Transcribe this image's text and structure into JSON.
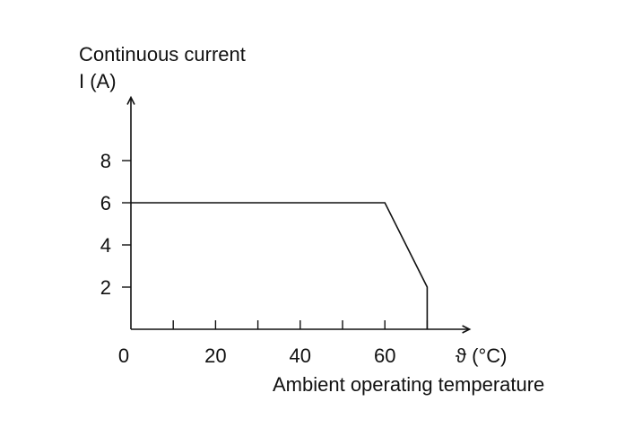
{
  "chart_data": {
    "type": "line",
    "title": "",
    "ylabel_line1": "Continuous current",
    "ylabel_line2": "I (A)",
    "xunit_label": "ϑ (°C)",
    "xlabel": "Ambient operating temperature",
    "xlim": [
      0,
      80
    ],
    "ylim": [
      0,
      11
    ],
    "x_tick_positions": [
      0,
      10,
      20,
      30,
      40,
      50,
      60,
      70
    ],
    "x_tick_labels": [
      {
        "value": 0,
        "label": "0"
      },
      {
        "value": 20,
        "label": "20"
      },
      {
        "value": 40,
        "label": "40"
      },
      {
        "value": 60,
        "label": "60"
      }
    ],
    "y_ticks": [
      {
        "value": 2,
        "label": "2"
      },
      {
        "value": 4,
        "label": "4"
      },
      {
        "value": 6,
        "label": "6"
      },
      {
        "value": 8,
        "label": "8"
      }
    ],
    "grid": false,
    "series": [
      {
        "x": [
          0,
          60,
          70,
          70
        ],
        "y": [
          6,
          6,
          2,
          0
        ],
        "color": "#111111"
      }
    ]
  }
}
